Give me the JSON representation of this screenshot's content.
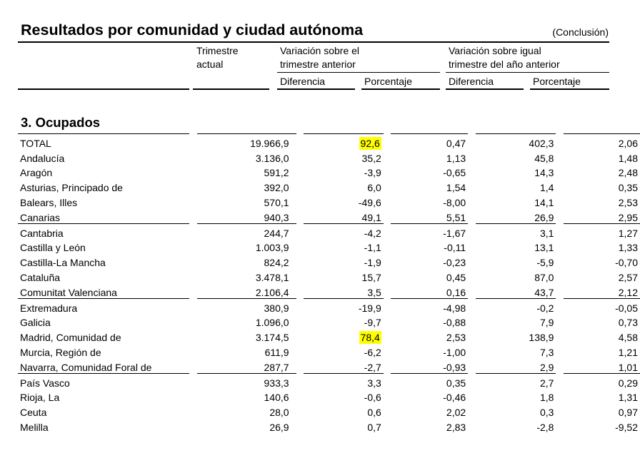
{
  "header": {
    "title": "Resultados por comunidad y ciudad autónoma",
    "subtitle": "(Conclusión)",
    "col_trimestre_line1": "Trimestre",
    "col_trimestre_line2": "actual",
    "group1_line1": "Variación sobre el",
    "group1_line2": "trimestre anterior",
    "group2_line1": "Variación sobre igual",
    "group2_line2": "trimestre del año anterior",
    "sub_diferencia": "Diferencia",
    "sub_porcentaje": "Porcentaje"
  },
  "section_title": "3. Ocupados",
  "highlight_color": "#ffff00",
  "rows": [
    {
      "name": "TOTAL",
      "actual": "19.966,9",
      "dif_trim": "92,6",
      "pct_trim": "0,47",
      "dif_anual": "402,3",
      "pct_anual": "2,06"
    },
    {
      "name": "Andalucía",
      "actual": "3.136,0",
      "dif_trim": "35,2",
      "pct_trim": "1,13",
      "dif_anual": "45,8",
      "pct_anual": "1,48"
    },
    {
      "name": "Aragón",
      "actual": "591,2",
      "dif_trim": "-3,9",
      "pct_trim": "-0,65",
      "dif_anual": "14,3",
      "pct_anual": "2,48"
    },
    {
      "name": "Asturias, Principado de",
      "actual": "392,0",
      "dif_trim": "6,0",
      "pct_trim": "1,54",
      "dif_anual": "1,4",
      "pct_anual": "0,35"
    },
    {
      "name": "Balears, Illes",
      "actual": "570,1",
      "dif_trim": "-49,6",
      "pct_trim": "-8,00",
      "dif_anual": "14,1",
      "pct_anual": "2,53"
    },
    {
      "name": "Canarias",
      "actual": "940,3",
      "dif_trim": "49,1",
      "pct_trim": "5,51",
      "dif_anual": "26,9",
      "pct_anual": "2,95"
    },
    {
      "name": "Cantabria",
      "actual": "244,7",
      "dif_trim": "-4,2",
      "pct_trim": "-1,67",
      "dif_anual": "3,1",
      "pct_anual": "1,27"
    },
    {
      "name": "Castilla y León",
      "actual": "1.003,9",
      "dif_trim": "-1,1",
      "pct_trim": "-0,11",
      "dif_anual": "13,1",
      "pct_anual": "1,33"
    },
    {
      "name": "Castilla-La Mancha",
      "actual": "824,2",
      "dif_trim": "-1,9",
      "pct_trim": "-0,23",
      "dif_anual": "-5,9",
      "pct_anual": "-0,70"
    },
    {
      "name": "Cataluña",
      "actual": "3.478,1",
      "dif_trim": "15,7",
      "pct_trim": "0,45",
      "dif_anual": "87,0",
      "pct_anual": "2,57"
    },
    {
      "name": "Comunitat Valenciana",
      "actual": "2.106,4",
      "dif_trim": "3,5",
      "pct_trim": "0,16",
      "dif_anual": "43,7",
      "pct_anual": "2,12"
    },
    {
      "name": "Extremadura",
      "actual": "380,9",
      "dif_trim": "-19,9",
      "pct_trim": "-4,98",
      "dif_anual": "-0,2",
      "pct_anual": "-0,05"
    },
    {
      "name": "Galicia",
      "actual": "1.096,0",
      "dif_trim": "-9,7",
      "pct_trim": "-0,88",
      "dif_anual": "7,9",
      "pct_anual": "0,73"
    },
    {
      "name": "Madrid, Comunidad de",
      "actual": "3.174,5",
      "dif_trim": "78,4",
      "pct_trim": "2,53",
      "dif_anual": "138,9",
      "pct_anual": "4,58"
    },
    {
      "name": "Murcia, Región de",
      "actual": "611,9",
      "dif_trim": "-6,2",
      "pct_trim": "-1,00",
      "dif_anual": "7,3",
      "pct_anual": "1,21"
    },
    {
      "name": "Navarra, Comunidad Foral de",
      "actual": "287,7",
      "dif_trim": "-2,7",
      "pct_trim": "-0,93",
      "dif_anual": "2,9",
      "pct_anual": "1,01"
    },
    {
      "name": "País Vasco",
      "actual": "933,3",
      "dif_trim": "3,3",
      "pct_trim": "0,35",
      "dif_anual": "2,7",
      "pct_anual": "0,29"
    },
    {
      "name": "Rioja, La",
      "actual": "140,6",
      "dif_trim": "-0,6",
      "pct_trim": "-0,46",
      "dif_anual": "1,8",
      "pct_anual": "1,31"
    },
    {
      "name": "Ceuta",
      "actual": "28,0",
      "dif_trim": "0,6",
      "pct_trim": "2,02",
      "dif_anual": "0,3",
      "pct_anual": "0,97"
    },
    {
      "name": "Melilla",
      "actual": "26,9",
      "dif_trim": "0,7",
      "pct_trim": "2,83",
      "dif_anual": "-2,8",
      "pct_anual": "-9,52"
    }
  ]
}
